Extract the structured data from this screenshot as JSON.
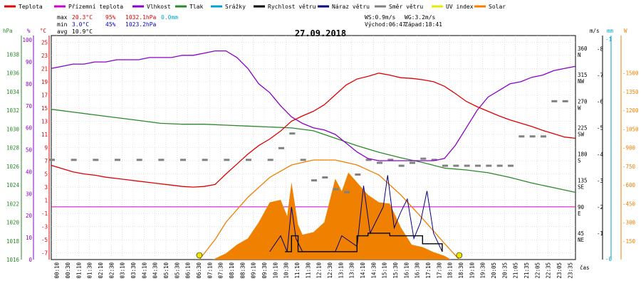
{
  "chart_data": {
    "type": "line",
    "title": "27.09.2018",
    "legend": [
      {
        "name": "Teplota",
        "color": "#e00000"
      },
      {
        "name": "Přízemní teplota",
        "color": "#cc00cc"
      },
      {
        "name": "Vlhkost",
        "color": "#8a00c8"
      },
      {
        "name": "Tlak",
        "color": "#2a8a2a"
      },
      {
        "name": "Srážky",
        "color": "#00a0d0"
      },
      {
        "name": "Rychlost větru",
        "color": "#000000"
      },
      {
        "name": "Náraz větru",
        "color": "#000080"
      },
      {
        "name": "Směr větru",
        "color": "#808080"
      },
      {
        "name": "UV index",
        "color": "#e8e800"
      },
      {
        "name": "Solar",
        "color": "#f08000"
      }
    ],
    "stats": {
      "max_label": "max",
      "max_temp": "20.3°C",
      "max_hum": "95%",
      "max_press": "1032.1hPa",
      "rain": "0.0mm",
      "min_label": "min",
      "min_temp": "3.0°C",
      "min_hum": "45%",
      "min_press": "1023.2hPa",
      "avg_label": "avg",
      "avg_temp": "10.9°C",
      "ws": "WS:0.9m/s",
      "wg": "WG:3.2m/s",
      "sunrise": "Východ:06:47",
      "sunset": "Západ:18:41"
    },
    "axes": {
      "left_units": [
        "hPa",
        "%",
        "°C"
      ],
      "right_units": [
        "m/s",
        "mm",
        "W"
      ],
      "pressure_ticks": [
        1016,
        1018,
        1020,
        1022,
        1024,
        1026,
        1028,
        1030,
        1032,
        1034,
        1036,
        1038
      ],
      "humidity_ticks": [
        0,
        10,
        20,
        30,
        40,
        50,
        60,
        70,
        80,
        90,
        100
      ],
      "temperature_ticks": [
        -7,
        -5,
        -3,
        -1,
        1,
        3,
        5,
        7,
        9,
        11,
        13,
        15,
        17,
        19,
        21,
        23,
        25
      ],
      "direction_ticks": [
        {
          "deg": "45",
          "dir": "NE"
        },
        {
          "deg": "90",
          "dir": "E"
        },
        {
          "deg": "135",
          "dir": "SE"
        },
        {
          "deg": "180",
          "dir": "S"
        },
        {
          "deg": "225",
          "dir": "SW"
        },
        {
          "deg": "270",
          "dir": "W"
        },
        {
          "deg": "315",
          "dir": "NW"
        },
        {
          "deg": "360",
          "dir": "N"
        }
      ],
      "wind_ticks": [
        1,
        2,
        3,
        4,
        5,
        6,
        7,
        8
      ],
      "rain_ticks": [
        "0",
        "1"
      ],
      "solar_ticks": [
        150,
        300,
        450,
        600,
        750,
        900,
        1050,
        1200,
        1350,
        1500
      ],
      "x_label": "čas",
      "x_ticks": [
        "00:10",
        "00:30",
        "01:10",
        "01:30",
        "02:10",
        "02:30",
        "03:10",
        "03:30",
        "04:10",
        "04:30",
        "05:10",
        "05:30",
        "06:10",
        "06:30",
        "07:10",
        "07:30",
        "08:10",
        "08:30",
        "09:10",
        "09:30",
        "10:10",
        "10:30",
        "11:10",
        "11:30",
        "12:10",
        "12:30",
        "13:10",
        "13:30",
        "14:10",
        "14:30",
        "15:10",
        "15:30",
        "16:10",
        "16:30",
        "17:10",
        "17:30",
        "18:10",
        "18:30",
        "19:10",
        "19:30",
        "20:05",
        "20:35",
        "21:05",
        "21:35",
        "22:05",
        "22:35",
        "23:05",
        "23:35"
      ],
      "zero_temp": 0,
      "x_range_hours": [
        0,
        24
      ],
      "temp_range": [
        -8,
        26
      ],
      "humidity_range": [
        0,
        102
      ],
      "pressure_range": [
        1016,
        1040
      ],
      "wind_range": [
        0,
        8.5
      ],
      "direction_range": [
        0,
        382
      ],
      "solar_range": [
        0,
        1800
      ]
    },
    "series": [
      {
        "name": "Teplota",
        "unit": "°C",
        "x": [
          0,
          0.5,
          1,
          1.5,
          2,
          2.5,
          3,
          3.5,
          4,
          4.5,
          5,
          5.5,
          6,
          6.5,
          7,
          7.5,
          8,
          8.5,
          9,
          9.5,
          10,
          10.5,
          11,
          11.5,
          12,
          12.5,
          13,
          13.5,
          14,
          14.5,
          15,
          15.5,
          16,
          16.5,
          17,
          17.5,
          18,
          18.5,
          19,
          19.5,
          20,
          20.5,
          21,
          21.5,
          22,
          22.5,
          23,
          23.5,
          24
        ],
        "y": [
          6.3,
          5.8,
          5.3,
          5.0,
          4.8,
          4.5,
          4.3,
          4.1,
          3.9,
          3.7,
          3.5,
          3.3,
          3.1,
          3.0,
          3.1,
          3.4,
          5.0,
          6.5,
          8.0,
          9.3,
          10.3,
          11.5,
          13.0,
          13.8,
          14.5,
          15.5,
          17.0,
          18.5,
          19.4,
          19.8,
          20.3,
          20.0,
          19.6,
          19.5,
          19.3,
          19.0,
          18.3,
          17.2,
          16.0,
          15.2,
          14.5,
          13.8,
          13.2,
          12.7,
          12.2,
          11.6,
          11.1,
          10.6,
          10.4
        ]
      },
      {
        "name": "Vlhkost",
        "unit": "%",
        "x": [
          0,
          0.5,
          1,
          1.5,
          2,
          2.5,
          3,
          3.5,
          4,
          4.5,
          5,
          5.5,
          6,
          6.5,
          7,
          7.5,
          8,
          8.5,
          9,
          9.5,
          10,
          10.5,
          11,
          11.5,
          12,
          12.5,
          13,
          13.5,
          14,
          14.5,
          15,
          15.5,
          16,
          16.5,
          17,
          17.5,
          18,
          18.5,
          19,
          19.5,
          20,
          20.5,
          21,
          21.5,
          22,
          22.5,
          23,
          23.5,
          24
        ],
        "y": [
          87,
          88,
          89,
          89,
          90,
          90,
          91,
          91,
          91,
          92,
          92,
          92,
          93,
          93,
          94,
          95,
          95,
          92,
          87,
          80,
          76,
          70,
          65,
          62,
          60,
          59,
          57,
          53,
          49,
          46,
          45,
          45,
          45,
          45,
          45,
          45,
          46,
          52,
          60,
          68,
          74,
          77,
          80,
          81,
          83,
          84,
          86,
          87,
          88
        ]
      },
      {
        "name": "Tlak",
        "unit": "hPa",
        "x": [
          0,
          1,
          2,
          3,
          4,
          5,
          6,
          7,
          8,
          9,
          10,
          11,
          12,
          13,
          14,
          15,
          16,
          17,
          18,
          19,
          20,
          21,
          22,
          23,
          24
        ],
        "y": [
          1032.1,
          1031.8,
          1031.5,
          1031.2,
          1030.9,
          1030.6,
          1030.5,
          1030.5,
          1030.4,
          1030.3,
          1030.2,
          1030.1,
          1029.8,
          1029.0,
          1028.2,
          1027.5,
          1026.9,
          1026.4,
          1025.8,
          1025.6,
          1025.3,
          1024.8,
          1024.2,
          1023.7,
          1023.2
        ]
      },
      {
        "name": "Rychlost větru",
        "unit": "m/s",
        "x": [
          10.7,
          11.0,
          11.3,
          12.0,
          13.5,
          14.0,
          14.5,
          15.0,
          15.5,
          16.0,
          16.5,
          17.0,
          17.5,
          17.9
        ],
        "y": [
          0.3,
          0.9,
          0.3,
          0.3,
          0.3,
          0.9,
          1.0,
          1.0,
          0.9,
          0.9,
          0.9,
          0.6,
          0.6,
          0.3
        ]
      },
      {
        "name": "Náraz větru",
        "unit": "m/s",
        "x": [
          10.0,
          10.5,
          10.8,
          11.0,
          11.2,
          11.5,
          12.0,
          13.0,
          13.3,
          14.0,
          14.3,
          14.6,
          14.9,
          15.2,
          15.4,
          15.7,
          16.0,
          16.3,
          16.6,
          16.9,
          17.2,
          17.5,
          17.9
        ],
        "y": [
          0.3,
          0.9,
          0.3,
          2.0,
          0.8,
          0.3,
          0.3,
          0.3,
          0.9,
          0.5,
          2.8,
          1.0,
          1.5,
          2.0,
          3.2,
          1.2,
          1.8,
          2.3,
          0.8,
          1.4,
          2.6,
          1.0,
          0.3
        ]
      },
      {
        "name": "Směr větru",
        "unit": "°",
        "x": [
          0,
          1,
          2,
          3,
          4,
          5,
          6,
          7,
          8,
          9,
          10,
          10.5,
          11,
          11.5,
          12,
          12.5,
          13,
          13.5,
          14,
          14.5,
          15,
          15.5,
          16,
          16.5,
          17,
          17.5,
          18,
          18.5,
          19,
          19.5,
          20,
          20.5,
          21,
          21.5,
          22,
          22.5,
          23,
          23.5
        ],
        "y": [
          170,
          170,
          170,
          170,
          170,
          170,
          170,
          170,
          170,
          170,
          170,
          190,
          215,
          170,
          135,
          140,
          120,
          115,
          145,
          170,
          165,
          170,
          160,
          165,
          172,
          170,
          160,
          160,
          160,
          160,
          160,
          160,
          160,
          210,
          210,
          210,
          270,
          270
        ]
      },
      {
        "name": "Solar",
        "unit": "W",
        "x": [
          7.4,
          8,
          8.5,
          9,
          9.5,
          10,
          10.5,
          10.8,
          11,
          11.3,
          11.5,
          12,
          12.5,
          13,
          13.3,
          13.6,
          14,
          14.5,
          15,
          15.5,
          16,
          16.5,
          17,
          17.5,
          18,
          18.3
        ],
        "y": [
          0,
          50,
          120,
          170,
          300,
          460,
          480,
          350,
          620,
          280,
          200,
          220,
          300,
          650,
          550,
          700,
          620,
          520,
          460,
          450,
          260,
          120,
          100,
          60,
          30,
          0
        ]
      },
      {
        "name": "Solar max",
        "unit": "W",
        "x": [
          6.78,
          7.5,
          8,
          9,
          10,
          11,
          12,
          13,
          14,
          15,
          16,
          17,
          18,
          18.68
        ],
        "y": [
          0,
          160,
          300,
          500,
          660,
          760,
          800,
          800,
          760,
          680,
          520,
          330,
          130,
          0
        ]
      }
    ]
  }
}
